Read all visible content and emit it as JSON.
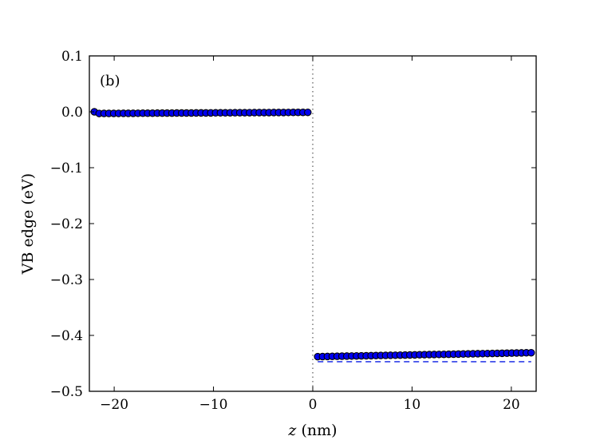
{
  "chart_data": {
    "type": "scatter",
    "panel_label": "(b)",
    "xlabel_var": "z",
    "xlabel_unit": " (nm)",
    "ylabel": "VB edge (eV)",
    "xlim": [
      -22.5,
      22.5
    ],
    "ylim": [
      -0.5,
      0.1
    ],
    "xticks": [
      -20,
      -10,
      0,
      10,
      20
    ],
    "xtick_labels": [
      "−20",
      "−10",
      "0",
      "10",
      "20"
    ],
    "yticks": [
      0.1,
      0.0,
      -0.1,
      -0.2,
      -0.3,
      -0.4,
      -0.5
    ],
    "ytick_labels": [
      "0.1",
      "0.0",
      "−0.1",
      "−0.2",
      "−0.3",
      "−0.4",
      "−0.5"
    ],
    "grid": false,
    "interface_line": {
      "x": 0,
      "style": "dotted",
      "color": "#333333"
    },
    "series": [
      {
        "marker": "circle",
        "color": "#0000ee",
        "edge_color": "#000000",
        "segments": [
          {
            "x_start": -22.0,
            "x_end": -0.5,
            "count": 45,
            "y_start": -0.003,
            "y_end": -0.001,
            "first_y": 0.0
          },
          {
            "x_start": 0.5,
            "x_end": 22.0,
            "count": 45,
            "y_start": -0.438,
            "y_end": -0.431
          }
        ]
      }
    ],
    "reference_line": {
      "x_start": 0.5,
      "x_end": 22.0,
      "y": -0.447,
      "style": "dashed",
      "color": "#2f3ee8"
    }
  }
}
